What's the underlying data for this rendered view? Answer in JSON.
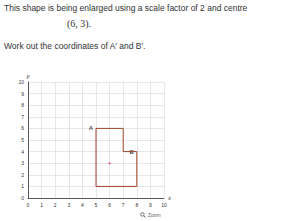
{
  "question": {
    "lines": [
      "This shape is being enlarged using a scale factor of 2 and centre",
      "(6, 3).",
      "Work out the coordinates of A′ and B′."
    ]
  },
  "chart_data": {
    "type": "line",
    "x_label": "x",
    "y_label": "y",
    "xlim": [
      0,
      10
    ],
    "ylim": [
      0,
      10
    ],
    "xticks": [
      0,
      1,
      2,
      3,
      4,
      5,
      6,
      7,
      8,
      9,
      10
    ],
    "yticks": [
      0,
      1,
      2,
      3,
      4,
      5,
      6,
      7,
      8,
      9,
      10
    ],
    "grid": true,
    "polygon": {
      "x": [
        5,
        7,
        7,
        8,
        8,
        5
      ],
      "y": [
        6,
        6,
        4,
        4,
        1,
        1
      ],
      "color": "#a0442a"
    },
    "points": [
      {
        "label": "A",
        "x": 5,
        "y": 6
      },
      {
        "label": "B",
        "x": 8,
        "y": 4
      }
    ],
    "centre": {
      "x": 6,
      "y": 3,
      "color": "#e0304a"
    }
  },
  "zoom_button": "Zoom"
}
